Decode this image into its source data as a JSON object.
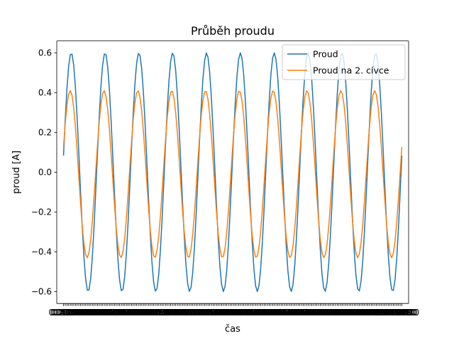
{
  "chart_data": {
    "type": "line",
    "title": "Průběh proudu",
    "xlabel": "čas",
    "ylabel": "proud [A]",
    "ylim": [
      -0.66,
      0.66
    ],
    "xlim": [
      -0.8,
      40.8
    ],
    "yticks": [
      -0.6,
      -0.4,
      -0.2,
      0.0,
      0.2,
      0.4,
      0.6
    ],
    "ytick_labels": [
      "−0.6",
      "−0.4",
      "−0.2",
      "0.0",
      "0.2",
      "0.4",
      "0.6"
    ],
    "xtick_count": 200,
    "xtick_labels_visible": [
      "0.0000",
      "40.0000"
    ],
    "legend_position": "upper right",
    "grid": false,
    "series": [
      {
        "name": "Proud",
        "color": "#1f77b4",
        "amplitude": 0.6,
        "cycles": 10,
        "phase_deg": 8,
        "x_start": 0,
        "x_end": 40,
        "samples": 200
      },
      {
        "name": "Proud na 2. cívce",
        "color": "#ff7f0e",
        "amplitude": 0.42,
        "cycles": 10,
        "phase_deg": 19,
        "offset": -0.01,
        "x_start": 0,
        "x_end": 40,
        "samples": 200
      }
    ]
  }
}
